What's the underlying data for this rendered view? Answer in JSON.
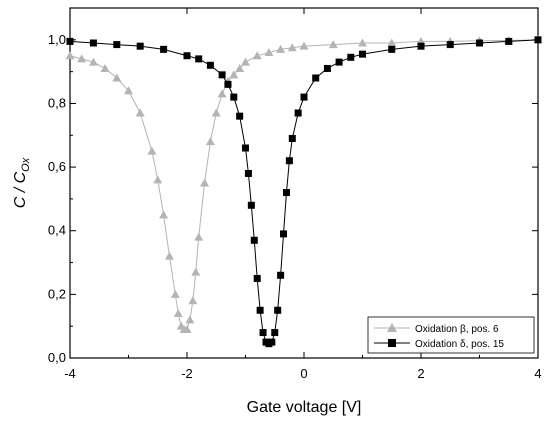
{
  "chart_data": {
    "type": "scatter",
    "xlabel": "Gate voltage [V]",
    "ylabel": {
      "main": "C / C",
      "subscript": "Ox"
    },
    "xlim": [
      -4,
      4
    ],
    "ylim": [
      0,
      1.1
    ],
    "x_ticks": [
      -4,
      -2,
      0,
      2,
      4
    ],
    "x_tick_labels": [
      "-4",
      "-2",
      "0",
      "2",
      "4"
    ],
    "y_ticks": [
      0,
      0.2,
      0.4,
      0.6,
      0.8,
      1.0
    ],
    "y_tick_labels": [
      "0,0",
      "0,2",
      "0,4",
      "0,6",
      "0,8",
      "1,0"
    ],
    "grid": false,
    "legend_position": "bottom-right",
    "series": [
      {
        "name": "Oxidation β, pos. 6",
        "marker": "triangle",
        "color": "#b4b4b4",
        "x": [
          -4.0,
          -3.8,
          -3.6,
          -3.4,
          -3.2,
          -3.0,
          -2.8,
          -2.6,
          -2.5,
          -2.4,
          -2.3,
          -2.2,
          -2.15,
          -2.1,
          -2.05,
          -2.0,
          -1.95,
          -1.9,
          -1.85,
          -1.8,
          -1.7,
          -1.6,
          -1.5,
          -1.4,
          -1.3,
          -1.2,
          -1.1,
          -1.0,
          -0.8,
          -0.6,
          -0.4,
          -0.2,
          0.0,
          0.5,
          1.0,
          1.5,
          2.0,
          2.5,
          3.0,
          3.5,
          4.0
        ],
        "y": [
          0.95,
          0.94,
          0.93,
          0.91,
          0.88,
          0.84,
          0.77,
          0.65,
          0.56,
          0.45,
          0.32,
          0.2,
          0.14,
          0.1,
          0.09,
          0.09,
          0.12,
          0.18,
          0.27,
          0.38,
          0.55,
          0.68,
          0.77,
          0.83,
          0.87,
          0.89,
          0.91,
          0.93,
          0.95,
          0.96,
          0.97,
          0.975,
          0.98,
          0.985,
          0.99,
          0.99,
          0.995,
          0.995,
          0.997,
          0.998,
          1.0
        ]
      },
      {
        "name": "Oxidation δ, pos. 15",
        "marker": "square",
        "color": "#000000",
        "x": [
          -4.0,
          -3.6,
          -3.2,
          -2.8,
          -2.4,
          -2.0,
          -1.8,
          -1.6,
          -1.4,
          -1.3,
          -1.2,
          -1.1,
          -1.0,
          -0.95,
          -0.9,
          -0.85,
          -0.8,
          -0.75,
          -0.7,
          -0.65,
          -0.6,
          -0.55,
          -0.5,
          -0.45,
          -0.4,
          -0.35,
          -0.3,
          -0.25,
          -0.2,
          -0.1,
          0.0,
          0.2,
          0.4,
          0.6,
          0.8,
          1.0,
          1.5,
          2.0,
          2.5,
          3.0,
          3.5,
          4.0
        ],
        "y": [
          0.995,
          0.99,
          0.985,
          0.98,
          0.97,
          0.95,
          0.94,
          0.92,
          0.89,
          0.86,
          0.82,
          0.76,
          0.66,
          0.58,
          0.48,
          0.37,
          0.25,
          0.15,
          0.08,
          0.05,
          0.045,
          0.05,
          0.08,
          0.15,
          0.26,
          0.39,
          0.52,
          0.62,
          0.69,
          0.77,
          0.82,
          0.88,
          0.91,
          0.93,
          0.945,
          0.955,
          0.97,
          0.98,
          0.985,
          0.99,
          0.995,
          1.0
        ]
      }
    ]
  }
}
